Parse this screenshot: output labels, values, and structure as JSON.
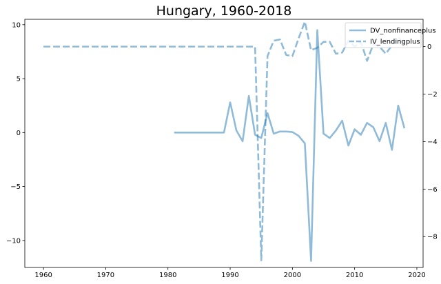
{
  "chart_data": {
    "type": "line",
    "title": "Hungary, 1960-2018",
    "xlabel": "",
    "ylabel_left": "",
    "ylabel_right": "",
    "xlim": [
      1957,
      2021
    ],
    "x_ticks": [
      1960,
      1970,
      1980,
      1990,
      2000,
      2010,
      2020
    ],
    "ylim_left": [
      -12.5,
      10.5
    ],
    "ylim_right": [
      -9.3,
      1.15
    ],
    "y_ticks_left": [
      10,
      5,
      0,
      -5,
      -10
    ],
    "y_ticks_right": [
      0,
      -2,
      -4,
      -6,
      -8
    ],
    "y_tick_labels_left": [
      "10",
      "5",
      "0",
      "−5",
      "−10"
    ],
    "y_tick_labels_right": [
      "0",
      "−2",
      "−4",
      "−6",
      "−8"
    ],
    "grid": false,
    "legend_position": "top-right",
    "series": [
      {
        "name": "DV_nonfinanceplus",
        "axis": "left",
        "style": "solid",
        "color": "#1f77b4",
        "x": [
          1981,
          1982,
          1983,
          1984,
          1985,
          1986,
          1987,
          1988,
          1989,
          1990,
          1991,
          1992,
          1993,
          1994,
          1995,
          1996,
          1997,
          1998,
          1999,
          2000,
          2001,
          2002,
          2003,
          2004,
          2005,
          2006,
          2007,
          2008,
          2009,
          2010,
          2011,
          2012,
          2013,
          2014,
          2015,
          2016,
          2017,
          2018
        ],
        "values": [
          0,
          0,
          0,
          0,
          0,
          0,
          0,
          0,
          0,
          2.8,
          0.2,
          -0.8,
          3.4,
          -0.2,
          -0.5,
          1.8,
          -0.1,
          0.1,
          0.1,
          0.05,
          -0.3,
          -1.0,
          -11.9,
          9.5,
          -0.1,
          -0.5,
          0.2,
          1.1,
          -1.2,
          0.3,
          -0.2,
          0.9,
          0.5,
          -0.8,
          0.9,
          -1.6,
          2.5,
          0.4
        ]
      },
      {
        "name": "IV_lendingplus",
        "axis": "right",
        "style": "dashed",
        "color": "#1f77b4",
        "x": [
          1960,
          1961,
          1962,
          1963,
          1964,
          1965,
          1966,
          1967,
          1968,
          1969,
          1970,
          1971,
          1972,
          1973,
          1974,
          1975,
          1976,
          1977,
          1978,
          1979,
          1980,
          1981,
          1982,
          1983,
          1984,
          1985,
          1986,
          1987,
          1988,
          1989,
          1990,
          1991,
          1992,
          1993,
          1994,
          1995,
          1996,
          1997,
          1998,
          1999,
          2000,
          2001,
          2002,
          2003,
          2004,
          2005,
          2006,
          2007,
          2008,
          2009,
          2010,
          2011,
          2012,
          2013,
          2014,
          2015,
          2016,
          2017,
          2018
        ],
        "values": [
          0,
          0,
          0,
          0,
          0,
          0,
          0,
          0,
          0,
          0,
          0,
          0,
          0,
          0,
          0,
          0,
          0,
          0,
          0,
          0,
          0,
          0,
          0,
          0,
          0,
          0,
          0,
          0,
          0,
          0,
          0,
          0,
          0,
          0,
          0,
          -9.0,
          -0.4,
          0.25,
          0.3,
          -0.35,
          -0.4,
          0.35,
          1.05,
          -0.15,
          -0.05,
          0.2,
          0.2,
          -0.3,
          -0.25,
          0.25,
          0.0,
          0.2,
          -0.6,
          0.1,
          0.0,
          -0.3,
          0.05,
          0.4,
          0.1
        ]
      }
    ]
  }
}
